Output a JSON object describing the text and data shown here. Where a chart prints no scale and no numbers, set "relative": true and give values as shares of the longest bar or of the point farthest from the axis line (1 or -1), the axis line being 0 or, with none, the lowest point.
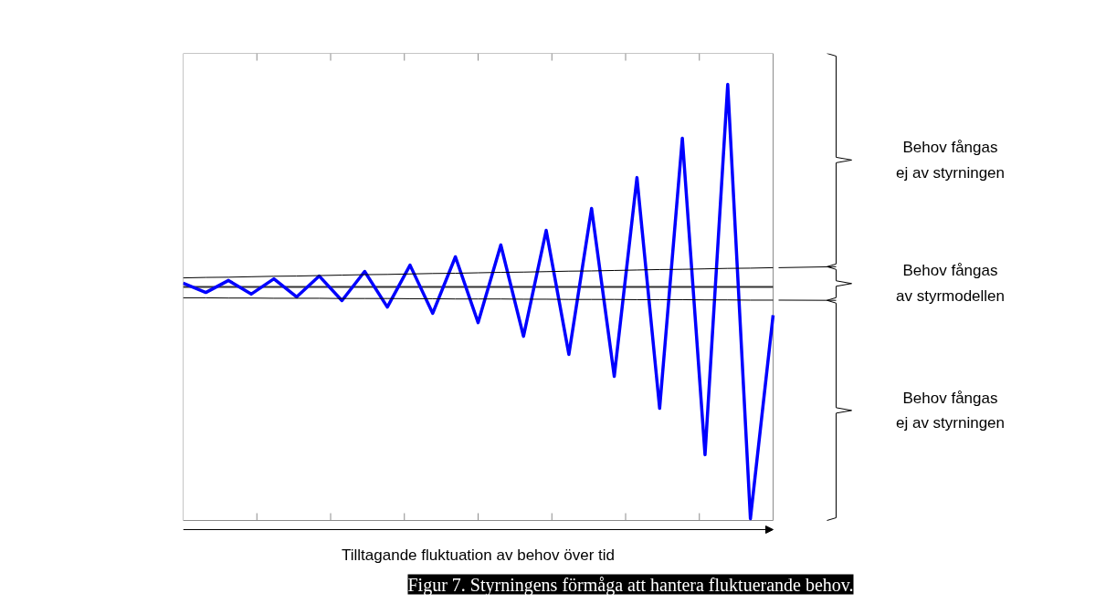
{
  "chart_data": {
    "type": "line",
    "relative": true,
    "title": "Figur 7. Styrningens förmåga att hantera fluktuerande behov.",
    "xlabel": "Tilltagande fluktuation av behov över tid",
    "grid": false,
    "marker": "none",
    "line_style": "solid",
    "categories": [
      null,
      null,
      null,
      null,
      null,
      null,
      null,
      null,
      null,
      null,
      null,
      null,
      null,
      null,
      null,
      null,
      null,
      null,
      null,
      null,
      null,
      null,
      null,
      null,
      null,
      null,
      null
    ],
    "series": [
      {
        "color": "#0000ff",
        "values": [
          0.016,
          -0.024,
          0.028,
          -0.031,
          0.035,
          -0.043,
          0.047,
          -0.059,
          0.067,
          -0.087,
          0.094,
          -0.114,
          0.13,
          -0.154,
          0.181,
          -0.213,
          0.244,
          -0.291,
          0.339,
          -0.386,
          0.472,
          -0.524,
          0.642,
          -0.724,
          0.874,
          -1,
          -0.122
        ]
      },
      {
        "color": "#000000",
        "values": [
          0.039,
          0.041,
          0.042,
          0.044,
          0.046,
          0.047,
          0.049,
          0.051,
          0.053,
          0.054,
          0.056,
          0.058,
          0.059,
          0.061,
          0.063,
          0.064,
          0.066,
          0.068,
          0.069,
          0.071,
          0.073,
          0.075,
          0.076,
          0.078,
          0.08,
          0.081,
          0.083
        ]
      },
      {
        "color": "#000000",
        "values": [
          -0.047,
          -0.047,
          -0.048,
          -0.048,
          -0.049,
          -0.049,
          -0.049,
          -0.05,
          -0.05,
          -0.05,
          -0.051,
          -0.051,
          -0.052,
          -0.052,
          -0.052,
          -0.053,
          -0.053,
          -0.054,
          -0.054,
          -0.054,
          -0.055,
          -0.055,
          -0.055,
          -0.056,
          -0.056,
          -0.057,
          -0.057
        ]
      }
    ],
    "annotations": [
      "Behov fångas\nej av styrningen",
      "Behov fångas\nav styrmodellen",
      "Behov fångas\nej av styrningen"
    ]
  }
}
